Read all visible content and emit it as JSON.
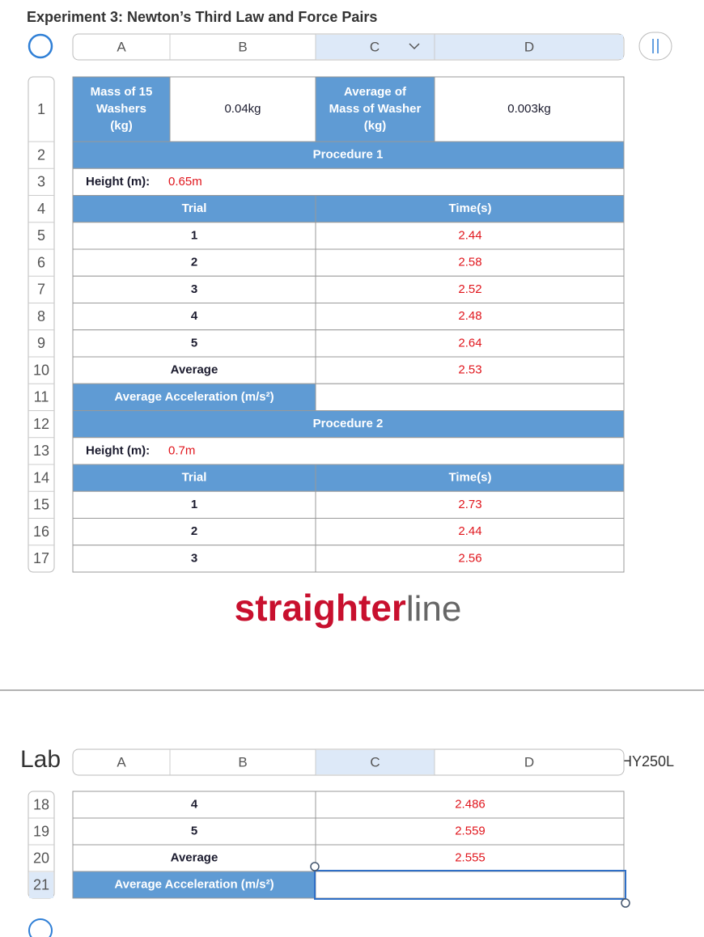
{
  "title": "Experiment 3: Newton’s Third Law and Force Pairs",
  "top_sheet": {
    "columns": [
      "A",
      "B",
      "C",
      "D"
    ],
    "rows": [
      {
        "number": 1,
        "cells": [
          {
            "lines": [
              "Mass of 15",
              "Washers",
              "(kg)"
            ]
          },
          "0.04kg",
          {
            "lines": [
              "Average of",
              "Mass of Washer",
              "(kg)"
            ]
          },
          "0.003kg"
        ]
      },
      {
        "number": 2,
        "cells": [
          "Procedure 1"
        ]
      },
      {
        "number": 3,
        "cells": [
          "Height (m):",
          "0.65m"
        ]
      },
      {
        "number": 4,
        "cells": [
          "Trial",
          "Time(s)"
        ]
      },
      {
        "number": 5,
        "cells": [
          1,
          2.44
        ]
      },
      {
        "number": 6,
        "cells": [
          2,
          2.58
        ]
      },
      {
        "number": 7,
        "cells": [
          3,
          2.52
        ]
      },
      {
        "number": 8,
        "cells": [
          4,
          2.48
        ]
      },
      {
        "number": 9,
        "cells": [
          5,
          2.64
        ]
      },
      {
        "number": 10,
        "cells": [
          "Average",
          2.53
        ]
      },
      {
        "number": 11,
        "cells": [
          "Average Acceleration (m/s²)"
        ]
      },
      {
        "number": 12,
        "cells": [
          "Procedure 2"
        ]
      },
      {
        "number": 13,
        "cells": [
          "Height (m):",
          "0.7m"
        ]
      },
      {
        "number": 14,
        "cells": [
          "Trial",
          "Time(s)"
        ]
      },
      {
        "number": 15,
        "cells": [
          1,
          2.73
        ]
      },
      {
        "number": 16,
        "cells": [
          2,
          2.44
        ]
      },
      {
        "number": 17,
        "cells": [
          3,
          2.56
        ]
      }
    ]
  },
  "logo": {
    "part1": "straighter",
    "part2": "line"
  },
  "bottom_sheet": {
    "left_fragment": "Lab",
    "right_fragment": "HY250L",
    "columns": [
      "A",
      "B",
      "C",
      "D"
    ],
    "rows": [
      {
        "number": 18,
        "cells": [
          4,
          2.486
        ]
      },
      {
        "number": 19,
        "cells": [
          5,
          2.559
        ]
      },
      {
        "number": 20,
        "cells": [
          "Average",
          2.555
        ]
      },
      {
        "number": 21,
        "cells": [
          "Average Acceleration (m/s²)"
        ]
      }
    ]
  }
}
